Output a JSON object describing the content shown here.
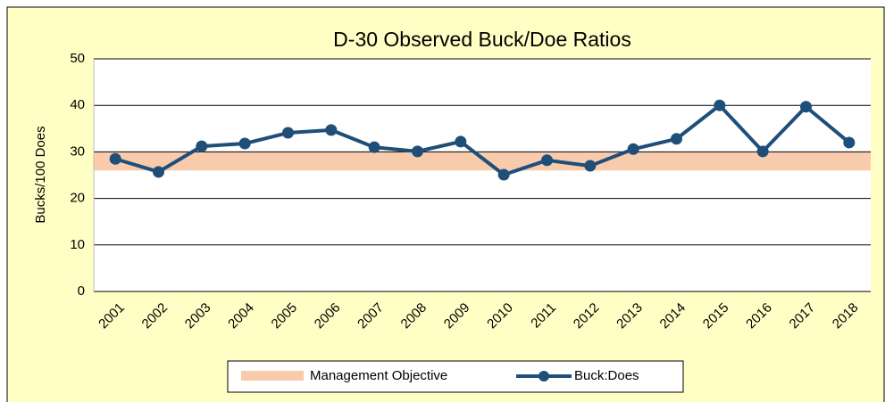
{
  "chart_data": {
    "type": "line",
    "title": "D-30 Observed Buck/Doe Ratios",
    "y_label": "Bucks/100 Does",
    "categories": [
      "2001",
      "2002",
      "2003",
      "2004",
      "2005",
      "2006",
      "2007",
      "2008",
      "2009",
      "2010",
      "2011",
      "2012",
      "2013",
      "2014",
      "2015",
      "2016",
      "2017",
      "2018"
    ],
    "series": [
      {
        "name": "Buck:Does",
        "color": "#1f4e79",
        "values": [
          28.5,
          25.7,
          31.2,
          31.8,
          34.1,
          34.7,
          31,
          30.1,
          32.2,
          25.1,
          28.2,
          27,
          30.6,
          32.8,
          40,
          30.1,
          39.7,
          32
        ]
      }
    ],
    "objective": {
      "name": "Management Objective",
      "color": "#f8cbad",
      "range": [
        26,
        30
      ]
    },
    "ylim": [
      0,
      50
    ],
    "yticks": [
      0,
      10,
      20,
      30,
      40,
      50
    ],
    "grid": true
  }
}
